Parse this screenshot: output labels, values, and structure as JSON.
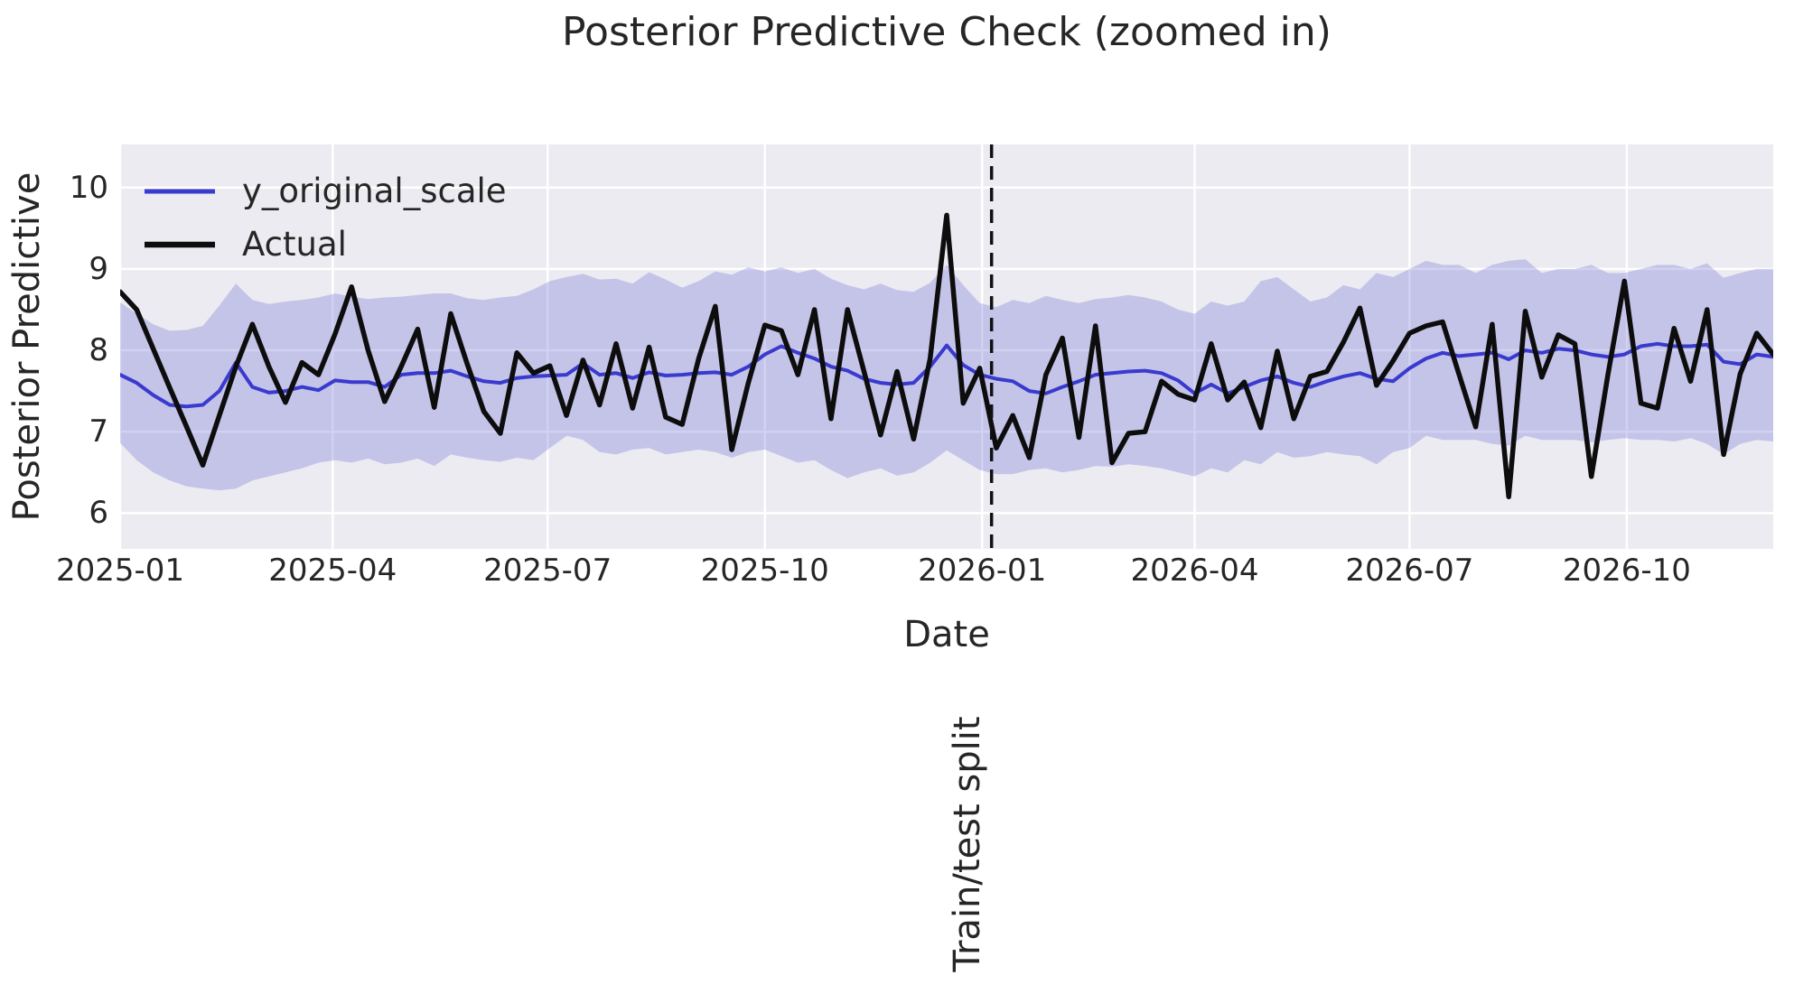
{
  "chart_data": {
    "type": "line",
    "title": "Posterior Predictive Check (zoomed in)",
    "xlabel": "Date",
    "ylabel": "Posterior Predictive",
    "x_domain": [
      "2025-01-01",
      "2026-12-02"
    ],
    "ylim": [
      5.56,
      10.53
    ],
    "yticks": [
      6,
      7,
      8,
      9,
      10
    ],
    "xticks": [
      {
        "date": "2025-01-01",
        "label": "2025-01"
      },
      {
        "date": "2025-04-01",
        "label": "2025-04"
      },
      {
        "date": "2025-07-01",
        "label": "2025-07"
      },
      {
        "date": "2025-10-01",
        "label": "2025-10"
      },
      {
        "date": "2026-01-01",
        "label": "2026-01"
      },
      {
        "date": "2026-04-01",
        "label": "2026-04"
      },
      {
        "date": "2026-07-01",
        "label": "2026-07"
      },
      {
        "date": "2026-10-01",
        "label": "2026-10"
      }
    ],
    "grid": "on",
    "legend_position": "upper-left",
    "colors": {
      "plot_background": "#ebebf1",
      "grid": "#ffffff",
      "band": "rgba(124,124,217,0.35)",
      "mean_line": "#3a3ace",
      "actual_line": "#0d0d0d",
      "split_line": "#111111",
      "text": "#262626"
    },
    "dates": [
      "2025-01-01",
      "2025-01-08",
      "2025-01-15",
      "2025-01-22",
      "2025-01-29",
      "2025-02-05",
      "2025-02-12",
      "2025-02-19",
      "2025-02-26",
      "2025-03-05",
      "2025-03-12",
      "2025-03-19",
      "2025-03-26",
      "2025-04-02",
      "2025-04-09",
      "2025-04-16",
      "2025-04-23",
      "2025-04-30",
      "2025-05-07",
      "2025-05-14",
      "2025-05-21",
      "2025-05-28",
      "2025-06-04",
      "2025-06-11",
      "2025-06-18",
      "2025-06-25",
      "2025-07-02",
      "2025-07-09",
      "2025-07-16",
      "2025-07-23",
      "2025-07-30",
      "2025-08-06",
      "2025-08-13",
      "2025-08-20",
      "2025-08-27",
      "2025-09-03",
      "2025-09-10",
      "2025-09-17",
      "2025-09-24",
      "2025-10-01",
      "2025-10-08",
      "2025-10-15",
      "2025-10-22",
      "2025-10-29",
      "2025-11-05",
      "2025-11-12",
      "2025-11-19",
      "2025-11-26",
      "2025-12-03",
      "2025-12-10",
      "2025-12-17",
      "2025-12-24",
      "2025-12-31",
      "2026-01-07",
      "2026-01-14",
      "2026-01-21",
      "2026-01-28",
      "2026-02-04",
      "2026-02-11",
      "2026-02-18",
      "2026-02-25",
      "2026-03-04",
      "2026-03-11",
      "2026-03-18",
      "2026-03-25",
      "2026-04-01",
      "2026-04-08",
      "2026-04-15",
      "2026-04-22",
      "2026-04-29",
      "2026-05-06",
      "2026-05-13",
      "2026-05-20",
      "2026-05-27",
      "2026-06-03",
      "2026-06-10",
      "2026-06-17",
      "2026-06-24",
      "2026-07-01",
      "2026-07-08",
      "2026-07-15",
      "2026-07-22",
      "2026-07-29",
      "2026-08-05",
      "2026-08-12",
      "2026-08-19",
      "2026-08-26",
      "2026-09-02",
      "2026-09-09",
      "2026-09-16",
      "2026-09-23",
      "2026-09-30",
      "2026-10-07",
      "2026-10-14",
      "2026-10-21",
      "2026-10-28",
      "2026-11-04",
      "2026-11-11",
      "2026-11-18",
      "2026-11-25",
      "2026-12-02"
    ],
    "series": [
      {
        "name": "y_original_scale",
        "color": "#3a3ace",
        "line_width": 4,
        "values": [
          7.7,
          7.6,
          7.45,
          7.33,
          7.31,
          7.33,
          7.5,
          7.85,
          7.55,
          7.48,
          7.5,
          7.55,
          7.51,
          7.63,
          7.61,
          7.61,
          7.55,
          7.7,
          7.72,
          7.72,
          7.75,
          7.68,
          7.62,
          7.6,
          7.66,
          7.68,
          7.69,
          7.7,
          7.84,
          7.7,
          7.72,
          7.66,
          7.73,
          7.69,
          7.7,
          7.72,
          7.73,
          7.7,
          7.8,
          7.95,
          8.05,
          7.97,
          7.9,
          7.8,
          7.75,
          7.65,
          7.6,
          7.58,
          7.6,
          7.8,
          8.06,
          7.82,
          7.7,
          7.65,
          7.62,
          7.5,
          7.47,
          7.55,
          7.62,
          7.7,
          7.72,
          7.74,
          7.75,
          7.72,
          7.63,
          7.47,
          7.58,
          7.47,
          7.55,
          7.63,
          7.68,
          7.6,
          7.55,
          7.62,
          7.68,
          7.72,
          7.65,
          7.62,
          7.78,
          7.9,
          7.97,
          7.93,
          7.95,
          7.97,
          7.89,
          8.0,
          7.97,
          8.02,
          8.0,
          7.95,
          7.92,
          7.95,
          8.05,
          8.08,
          8.05,
          8.05,
          8.07,
          7.86,
          7.83,
          7.95,
          7.92
        ]
      },
      {
        "name": "Actual",
        "color": "#0d0d0d",
        "line_width": 5.5,
        "values": [
          8.72,
          8.5,
          8.02,
          7.54,
          7.07,
          6.59,
          7.2,
          7.8,
          8.32,
          7.8,
          7.36,
          7.85,
          7.7,
          8.2,
          8.78,
          8.0,
          7.37,
          7.8,
          8.26,
          7.3,
          8.45,
          7.83,
          7.25,
          6.98,
          7.97,
          7.72,
          7.81,
          7.2,
          7.88,
          7.33,
          8.08,
          7.29,
          8.04,
          7.18,
          7.09,
          7.9,
          8.54,
          6.78,
          7.6,
          8.31,
          8.24,
          7.7,
          8.5,
          7.16,
          8.5,
          7.74,
          6.96,
          7.74,
          6.91,
          7.9,
          9.66,
          7.35,
          7.78,
          6.8,
          7.2,
          6.68,
          7.7,
          8.15,
          6.93,
          8.3,
          6.62,
          6.98,
          7.0,
          7.62,
          7.46,
          7.39,
          8.08,
          7.39,
          7.61,
          7.05,
          7.99,
          7.16,
          7.68,
          7.74,
          8.1,
          8.52,
          7.57,
          7.87,
          8.21,
          8.3,
          8.35,
          7.7,
          7.06,
          8.32,
          6.2,
          8.48,
          7.67,
          8.19,
          8.08,
          6.45,
          7.7,
          8.85,
          7.35,
          7.29,
          8.27,
          7.62,
          8.5,
          6.72,
          7.71,
          8.21,
          7.95
        ]
      }
    ],
    "band": {
      "name": "posterior-predictive-interval",
      "hi": [
        8.59,
        8.45,
        8.32,
        8.24,
        8.25,
        8.3,
        8.55,
        8.82,
        8.62,
        8.57,
        8.6,
        8.62,
        8.65,
        8.7,
        8.66,
        8.63,
        8.65,
        8.66,
        8.68,
        8.7,
        8.7,
        8.64,
        8.62,
        8.65,
        8.67,
        8.75,
        8.85,
        8.9,
        8.94,
        8.87,
        8.88,
        8.82,
        8.96,
        8.87,
        8.77,
        8.85,
        8.97,
        8.93,
        9.02,
        8.97,
        9.02,
        8.95,
        9.0,
        8.88,
        8.8,
        8.75,
        8.82,
        8.74,
        8.72,
        8.83,
        9.05,
        8.8,
        8.58,
        8.53,
        8.62,
        8.58,
        8.67,
        8.62,
        8.58,
        8.63,
        8.65,
        8.68,
        8.65,
        8.6,
        8.5,
        8.45,
        8.6,
        8.55,
        8.6,
        8.85,
        8.9,
        8.75,
        8.6,
        8.65,
        8.8,
        8.75,
        8.95,
        8.9,
        9.0,
        9.1,
        9.05,
        9.05,
        8.95,
        9.05,
        9.1,
        9.12,
        8.95,
        9.0,
        9.0,
        9.05,
        8.95,
        8.95,
        9.0,
        9.05,
        9.05,
        9.0,
        9.07,
        8.89,
        8.95,
        9.0,
        9.0
      ],
      "lo": [
        6.86,
        6.65,
        6.5,
        6.4,
        6.33,
        6.3,
        6.28,
        6.3,
        6.4,
        6.45,
        6.5,
        6.55,
        6.62,
        6.65,
        6.62,
        6.67,
        6.6,
        6.62,
        6.67,
        6.58,
        6.72,
        6.68,
        6.65,
        6.63,
        6.68,
        6.65,
        6.8,
        6.95,
        6.9,
        6.75,
        6.72,
        6.78,
        6.8,
        6.72,
        6.75,
        6.78,
        6.75,
        6.68,
        6.75,
        6.78,
        6.7,
        6.62,
        6.65,
        6.53,
        6.43,
        6.5,
        6.55,
        6.46,
        6.5,
        6.62,
        6.77,
        6.65,
        6.53,
        6.48,
        6.48,
        6.53,
        6.55,
        6.5,
        6.53,
        6.58,
        6.57,
        6.6,
        6.58,
        6.55,
        6.5,
        6.45,
        6.55,
        6.5,
        6.65,
        6.6,
        6.75,
        6.68,
        6.7,
        6.75,
        6.72,
        6.7,
        6.6,
        6.75,
        6.8,
        6.95,
        6.9,
        6.9,
        6.9,
        6.85,
        6.83,
        6.95,
        6.9,
        6.9,
        6.9,
        6.87,
        6.9,
        6.92,
        6.9,
        6.9,
        6.88,
        6.92,
        6.85,
        6.72,
        6.85,
        6.9,
        6.88
      ]
    },
    "split": {
      "date": "2026-01-05",
      "label": "Train/test split"
    }
  }
}
